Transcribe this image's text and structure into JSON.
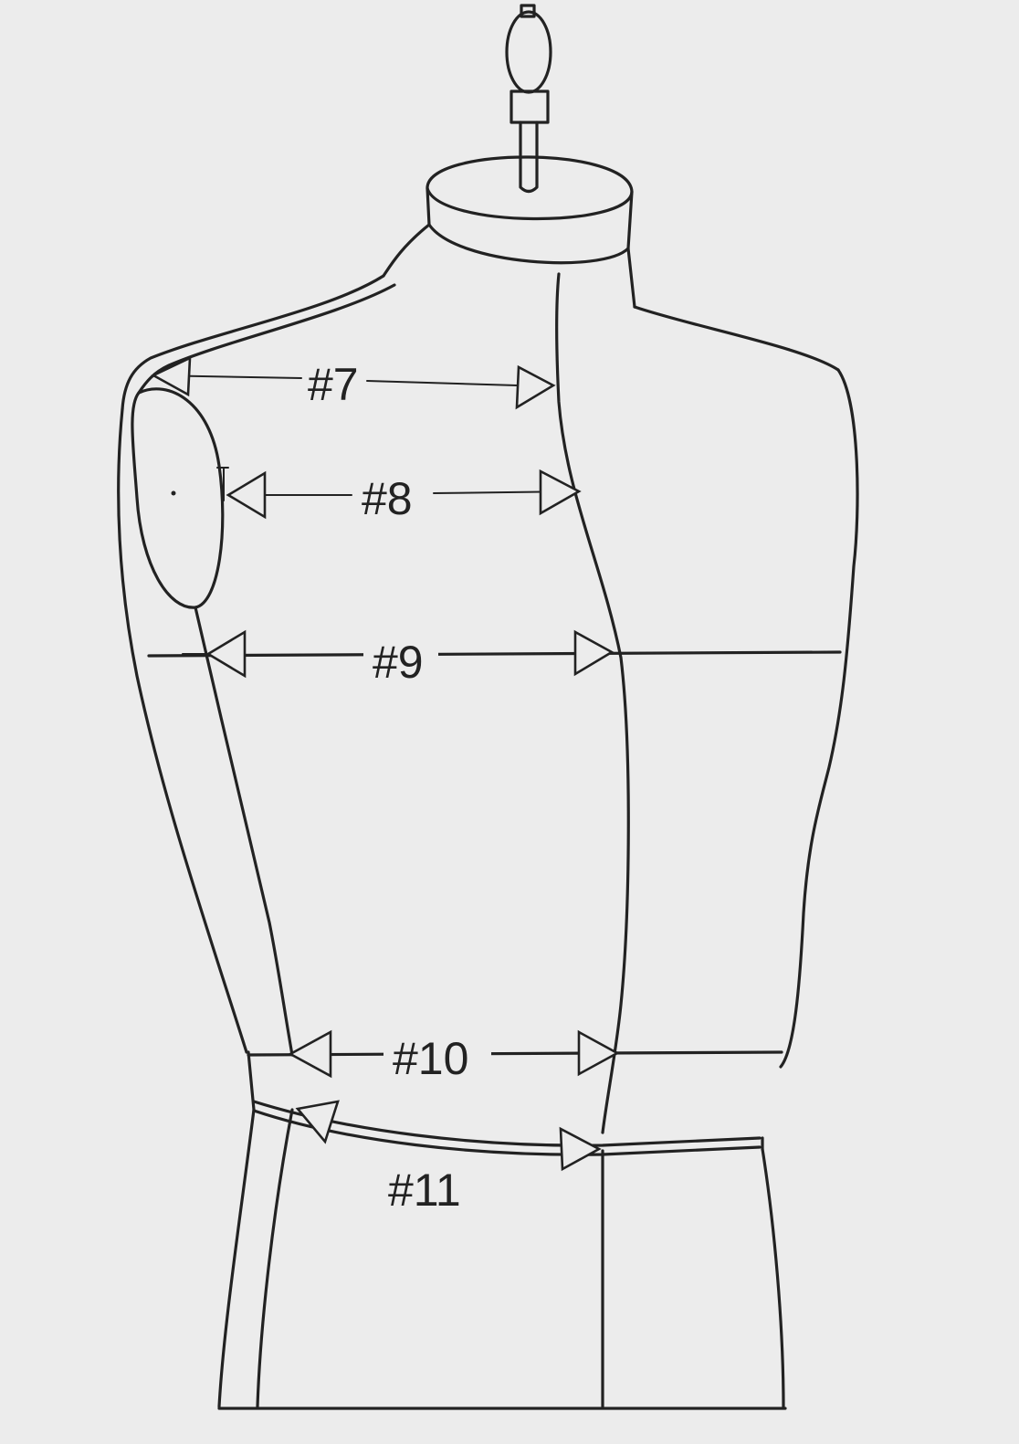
{
  "background_color": "#ececec",
  "line_color": "#222222",
  "measurements": [
    {
      "id": "7",
      "label": "#7"
    },
    {
      "id": "8",
      "label": "#8"
    },
    {
      "id": "9",
      "label": "#9"
    },
    {
      "id": "10",
      "label": "#10"
    },
    {
      "id": "11",
      "label": "#11"
    }
  ]
}
